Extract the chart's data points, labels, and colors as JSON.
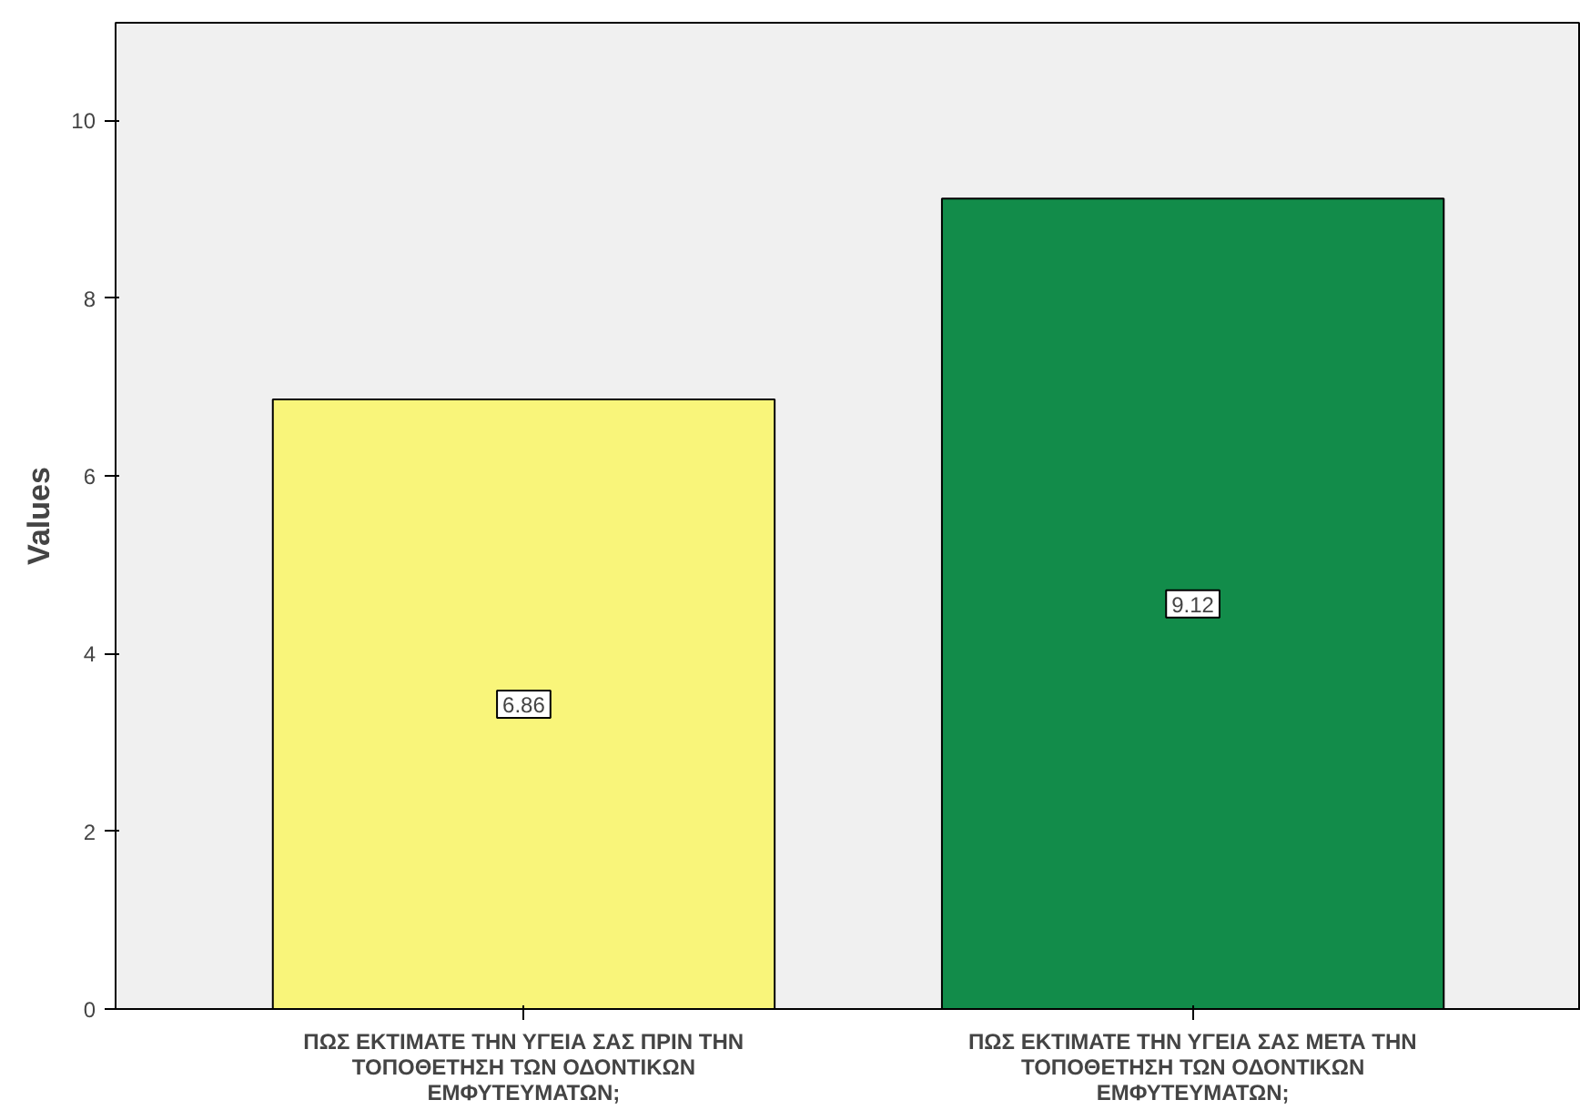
{
  "chart_data": {
    "type": "bar",
    "ylabel": "Values",
    "categories": [
      "ΠΩΣ ΕΚΤΙΜΑΤΕ ΤΗΝ ΥΓΕΙΑ ΣΑΣ ΠΡΙΝ ΤΗΝ ΤΟΠΟΘΕΤΗΣΗ ΤΩΝ ΟΔΟΝΤΙΚΩΝ ΕΜΦΥΤΕΥΜΑΤΩΝ;",
      "ΠΩΣ ΕΚΤΙΜΑΤΕ ΤΗΝ ΥΓΕΙΑ ΣΑΣ ΜΕΤΑ ΤΗΝ ΤΟΠΟΘΕΤΗΣΗ ΤΩΝ ΟΔΟΝΤΙΚΩΝ ΕΜΦΥΤΕΥΜΑΤΩΝ;"
    ],
    "values": [
      6.86,
      9.12
    ],
    "colors": [
      "#f9f57a",
      "#128c4a"
    ],
    "ylim": [
      0,
      11.1
    ],
    "yticks": [
      0,
      2,
      4,
      6,
      8,
      10
    ],
    "grid": false,
    "data_labels": true
  }
}
